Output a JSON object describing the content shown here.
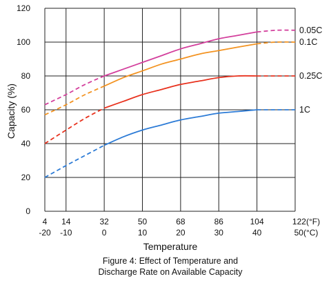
{
  "chart_data": {
    "type": "line",
    "title": "",
    "xlabel": "Temperature",
    "ylabel": "Capacity (%)",
    "caption": [
      "Figure 4: Effect of Temperature and",
      "Discharge Rate on Available Capacity"
    ],
    "ylim": [
      0,
      120
    ],
    "yticks": [
      "0",
      "20",
      "40",
      "60",
      "80",
      "100",
      "120"
    ],
    "xlim": [
      4,
      122
    ],
    "xticks_f": [
      "4",
      "14",
      "32",
      "50",
      "68",
      "86",
      "104",
      "122(°F)"
    ],
    "xticks_c": [
      "-20",
      "-10",
      "0",
      "10",
      "20",
      "30",
      "40",
      "50(°C)"
    ],
    "grid": true,
    "dashed_segments": "dashed below about 32°F (0°C) and above about 104°F (40°C)",
    "series": [
      {
        "name": "0.05C",
        "color": "#d33f9c",
        "x": [
          4,
          14,
          23,
          32,
          41,
          50,
          59,
          68,
          77,
          86,
          95,
          104,
          113,
          122
        ],
        "y": [
          63,
          69,
          75,
          80,
          84,
          88,
          92,
          96,
          99,
          102,
          104,
          106,
          107,
          107
        ]
      },
      {
        "name": "0.1C",
        "color": "#f39321",
        "x": [
          4,
          14,
          23,
          32,
          41,
          50,
          59,
          68,
          77,
          86,
          95,
          104,
          113,
          122
        ],
        "y": [
          57,
          63,
          69,
          74,
          79,
          83,
          87,
          90,
          93,
          95,
          97,
          99,
          100,
          100
        ]
      },
      {
        "name": "0.25C",
        "color": "#e8321e",
        "x": [
          4,
          14,
          23,
          32,
          41,
          50,
          59,
          68,
          77,
          86,
          95,
          104,
          113,
          122
        ],
        "y": [
          40,
          48,
          55,
          61,
          65,
          69,
          72,
          75,
          77,
          79,
          80,
          80,
          80,
          80
        ]
      },
      {
        "name": "1C",
        "color": "#2c7bd6",
        "x": [
          4,
          14,
          23,
          32,
          41,
          50,
          59,
          68,
          77,
          86,
          95,
          104,
          113,
          122
        ],
        "y": [
          20,
          27,
          33,
          39,
          44,
          48,
          51,
          54,
          56,
          58,
          59,
          60,
          60,
          60
        ]
      }
    ]
  }
}
